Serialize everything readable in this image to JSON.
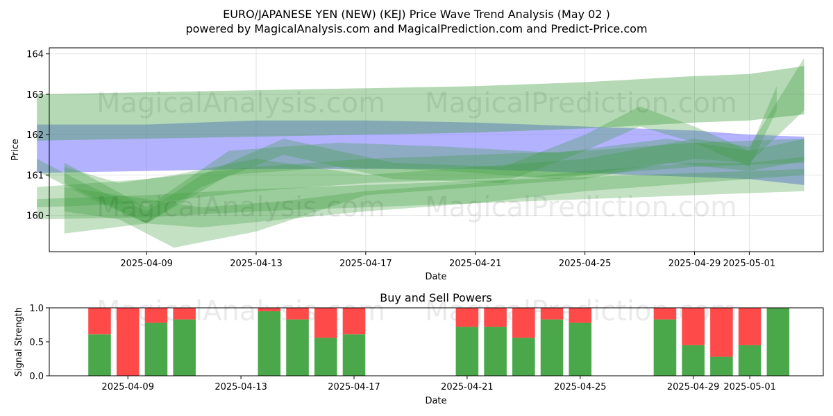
{
  "header": {
    "title": "EURO/JAPANESE YEN (NEW) (KEJ) Price Wave Trend Analysis (May 02 )",
    "subtitle": "powered by MagicalAnalysis.com and MagicalPrediction.com and Predict-Price.com"
  },
  "watermarks": [
    "MagicalAnalysis.com",
    "MagicalPrediction.com"
  ],
  "colors": {
    "green": "#3a9a3a",
    "blue": "#6666ff",
    "buy": "#4aa84a",
    "sell": "#ff4a4a"
  },
  "chart_data": [
    {
      "type": "area",
      "title": "",
      "xlabel": "Date",
      "ylabel": "Price",
      "x_ticks": [
        "2025-04-09",
        "2025-04-13",
        "2025-04-17",
        "2025-04-21",
        "2025-04-25",
        "2025-04-29",
        "2025-05-01"
      ],
      "y_ticks": [
        160,
        161,
        162,
        163,
        164
      ],
      "xlim": [
        "2025-04-05",
        "2025-05-04"
      ],
      "ylim": [
        159.1,
        164.15
      ],
      "grid": true,
      "series": [
        {
          "color": "blue",
          "x": [
            "2025-04-05",
            "2025-04-09",
            "2025-04-13",
            "2025-04-17",
            "2025-04-21",
            "2025-04-25",
            "2025-04-29",
            "2025-05-01",
            "2025-05-03"
          ],
          "upper": [
            162.25,
            162.25,
            162.35,
            162.35,
            162.3,
            162.2,
            162.1,
            162.0,
            161.95
          ],
          "lower": [
            161.05,
            161.1,
            161.15,
            161.15,
            161.15,
            161.05,
            160.95,
            160.9,
            160.75
          ]
        },
        {
          "color": "green",
          "x": [
            "2025-04-05",
            "2025-04-09",
            "2025-04-13",
            "2025-04-17",
            "2025-04-21",
            "2025-04-25",
            "2025-04-29",
            "2025-05-01",
            "2025-05-03"
          ],
          "upper": [
            163.0,
            163.05,
            163.1,
            163.15,
            163.2,
            163.3,
            163.45,
            163.5,
            163.7
          ],
          "lower": [
            161.85,
            161.9,
            161.95,
            162.0,
            162.05,
            162.15,
            162.3,
            162.35,
            162.5
          ]
        },
        {
          "color": "green",
          "x": [
            "2025-04-05",
            "2025-04-09",
            "2025-04-13",
            "2025-04-17",
            "2025-04-21",
            "2025-04-25",
            "2025-04-29",
            "2025-05-01",
            "2025-05-03"
          ],
          "upper": [
            160.7,
            160.9,
            161.2,
            161.4,
            161.5,
            161.6,
            161.8,
            161.85,
            161.9
          ],
          "lower": [
            160.2,
            160.3,
            160.6,
            160.8,
            160.9,
            161.0,
            161.2,
            161.25,
            161.3
          ]
        },
        {
          "color": "green",
          "x": [
            "2025-04-05",
            "2025-04-09",
            "2025-04-13",
            "2025-04-17",
            "2025-04-21",
            "2025-04-25",
            "2025-04-29",
            "2025-05-01",
            "2025-05-03"
          ],
          "upper": [
            160.4,
            160.5,
            160.65,
            160.75,
            160.85,
            160.95,
            161.05,
            161.1,
            161.15
          ],
          "lower": [
            159.9,
            159.95,
            160.1,
            160.2,
            160.3,
            160.4,
            160.5,
            160.55,
            160.6
          ]
        },
        {
          "color": "green",
          "x": [
            "2025-04-06",
            "2025-04-09",
            "2025-04-11",
            "2025-04-14",
            "2025-04-17",
            "2025-04-21",
            "2025-04-25",
            "2025-04-29",
            "2025-05-01",
            "2025-05-03"
          ],
          "upper": [
            160.7,
            160.4,
            160.2,
            160.35,
            160.6,
            160.8,
            161.1,
            161.3,
            161.3,
            161.45
          ],
          "lower": [
            159.55,
            159.8,
            159.7,
            159.9,
            160.1,
            160.3,
            160.6,
            160.8,
            160.9,
            161.0
          ]
        },
        {
          "color": "green",
          "x": [
            "2025-04-06",
            "2025-04-09",
            "2025-04-12",
            "2025-04-16",
            "2025-04-20",
            "2025-04-24",
            "2025-04-28",
            "2025-05-01",
            "2025-05-03"
          ],
          "upper": [
            161.3,
            160.2,
            161.6,
            161.8,
            161.7,
            161.55,
            161.9,
            161.6,
            161.9
          ],
          "lower": [
            160.8,
            159.8,
            161.0,
            161.2,
            161.1,
            160.9,
            161.3,
            161.1,
            161.35
          ]
        },
        {
          "color": "green",
          "x": [
            "2025-04-05",
            "2025-04-07",
            "2025-04-09",
            "2025-04-11",
            "2025-04-14",
            "2025-04-18",
            "2025-04-22",
            "2025-04-25",
            "2025-04-27",
            "2025-04-29",
            "2025-05-01",
            "2025-05-02"
          ],
          "upper": [
            161.4,
            160.7,
            160.1,
            161.0,
            161.9,
            161.3,
            161.2,
            162.0,
            162.7,
            162.2,
            161.6,
            163.2
          ],
          "lower": [
            161.1,
            160.4,
            159.8,
            160.7,
            161.5,
            160.9,
            160.8,
            161.6,
            162.2,
            161.8,
            161.2,
            162.6
          ]
        },
        {
          "color": "green",
          "x": [
            "2025-04-06",
            "2025-04-08",
            "2025-04-10",
            "2025-04-13",
            "2025-04-17",
            "2025-04-21",
            "2025-04-25",
            "2025-04-29",
            "2025-05-01",
            "2025-05-03"
          ],
          "upper": [
            161.2,
            160.8,
            161.0,
            161.4,
            161.0,
            161.2,
            161.4,
            161.9,
            161.7,
            163.9
          ],
          "lower": [
            160.1,
            159.9,
            159.2,
            159.6,
            160.5,
            160.7,
            160.9,
            161.4,
            161.3,
            162.6
          ]
        }
      ]
    },
    {
      "type": "bar",
      "title": "Buy and Sell Powers",
      "xlabel": "Date",
      "ylabel": "Signal Strength",
      "x_ticks": [
        "2025-04-09",
        "2025-04-13",
        "2025-04-17",
        "2025-04-21",
        "2025-04-25",
        "2025-04-29",
        "2025-05-01"
      ],
      "y_ticks": [
        0.0,
        0.5,
        1.0
      ],
      "ylim": [
        0,
        1
      ],
      "categories": [
        "2025-04-08",
        "2025-04-09",
        "2025-04-10",
        "2025-04-11",
        "2025-04-14",
        "2025-04-15",
        "2025-04-16",
        "2025-04-17",
        "2025-04-21",
        "2025-04-22",
        "2025-04-23",
        "2025-04-24",
        "2025-04-25",
        "2025-04-28",
        "2025-04-29",
        "2025-04-30",
        "2025-05-01",
        "2025-05-02"
      ],
      "series": [
        {
          "name": "Buy",
          "values": [
            0.61,
            0.0,
            0.78,
            0.83,
            0.95,
            0.83,
            0.56,
            0.61,
            0.72,
            0.72,
            0.56,
            0.83,
            0.78,
            0.83,
            0.45,
            0.28,
            0.45,
            1.0
          ]
        },
        {
          "name": "Sell",
          "values": [
            0.39,
            1.0,
            0.22,
            0.17,
            0.05,
            0.17,
            0.44,
            0.39,
            0.28,
            0.28,
            0.44,
            0.17,
            0.22,
            0.17,
            0.55,
            0.72,
            0.55,
            0.0
          ]
        }
      ]
    }
  ]
}
